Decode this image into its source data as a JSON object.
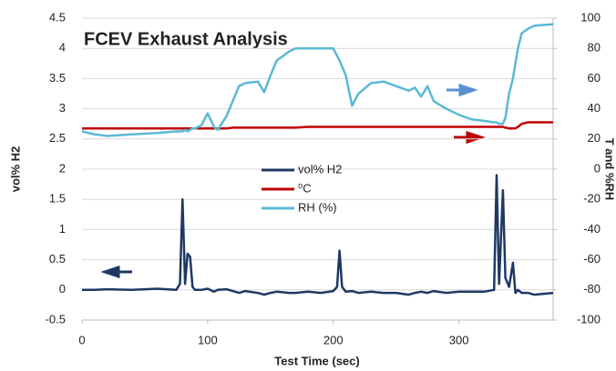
{
  "chart_data": {
    "type": "line",
    "title": "FCEV Exhaust Analysis",
    "x_label": "Test Time (sec)",
    "y_label": "vol% H2",
    "y2_label": "T and %RH",
    "x": [
      0,
      10,
      20,
      40,
      60,
      75,
      78,
      80,
      82,
      84,
      86,
      88,
      90,
      95,
      100,
      105,
      108,
      115,
      120,
      125,
      130,
      140,
      145,
      150,
      155,
      165,
      170,
      180,
      190,
      200,
      203,
      205,
      207,
      210,
      215,
      220,
      230,
      240,
      250,
      260,
      265,
      270,
      275,
      280,
      290,
      300,
      310,
      320,
      328,
      330,
      332,
      335,
      337,
      340,
      343,
      345,
      347,
      350,
      355,
      360,
      375
    ],
    "series": [
      {
        "name": "vol% H2",
        "color": "#1f3864",
        "axis": "y",
        "values": [
          0,
          0,
          0.01,
          0,
          0.02,
          0,
          0.1,
          1.5,
          0.1,
          0.6,
          0.55,
          0.05,
          0,
          0,
          0.02,
          -0.03,
          0,
          0.01,
          -0.02,
          -0.05,
          -0.02,
          -0.05,
          -0.08,
          -0.05,
          -0.03,
          -0.05,
          -0.05,
          -0.03,
          -0.05,
          -0.02,
          0.05,
          0.65,
          0.05,
          -0.03,
          -0.02,
          -0.05,
          -0.03,
          -0.05,
          -0.05,
          -0.08,
          -0.05,
          -0.03,
          -0.05,
          -0.02,
          -0.05,
          -0.03,
          -0.03,
          -0.03,
          0,
          1.9,
          0.1,
          1.65,
          0.2,
          0.05,
          0.45,
          -0.05,
          0,
          -0.05,
          -0.05,
          -0.08,
          -0.05
        ]
      },
      {
        "name": "⁰C",
        "color": "#c00000",
        "axis": "y2",
        "values": [
          27,
          27,
          27,
          27,
          27,
          27,
          27,
          27,
          27,
          27,
          27,
          27,
          27,
          27,
          27,
          27,
          27,
          27,
          27.5,
          27.5,
          27.5,
          27.5,
          27.5,
          27.5,
          27.5,
          27.5,
          27.5,
          28,
          28,
          28,
          28,
          28,
          28,
          28,
          28,
          28,
          28,
          28,
          28,
          28,
          28,
          28,
          28,
          28,
          28,
          28,
          28,
          28,
          28,
          28,
          28,
          28,
          27.5,
          27,
          27,
          27,
          28,
          30,
          31,
          31,
          31
        ]
      },
      {
        "name": "RH (%)",
        "color": "#5bb8d4",
        "axis": "y2",
        "values": [
          25,
          23,
          22,
          23,
          24,
          25,
          25,
          25,
          26,
          25,
          26,
          27,
          27,
          29,
          37,
          28,
          26,
          35,
          45,
          55,
          57,
          58,
          51,
          62,
          72,
          78,
          80,
          80,
          80,
          80,
          75,
          72,
          68,
          62,
          42,
          50,
          57,
          58,
          55,
          52,
          54,
          48,
          55,
          45,
          40,
          36,
          33,
          32,
          31,
          31,
          30,
          30,
          34,
          50,
          60,
          70,
          80,
          90,
          93,
          95,
          96
        ]
      }
    ],
    "xlim": [
      0,
      375
    ],
    "xticks": [
      0,
      100,
      200,
      300
    ],
    "ylim": [
      -0.5,
      4.5
    ],
    "yticks": [
      -0.5,
      0,
      0.5,
      1,
      1.5,
      2,
      2.5,
      3,
      3.5,
      4,
      4.5
    ],
    "y2lim": [
      -100,
      100
    ],
    "y2ticks": [
      -100,
      -80,
      -60,
      -40,
      -20,
      0,
      20,
      40,
      60,
      80,
      100
    ],
    "grid": true,
    "legend_position": "center"
  }
}
